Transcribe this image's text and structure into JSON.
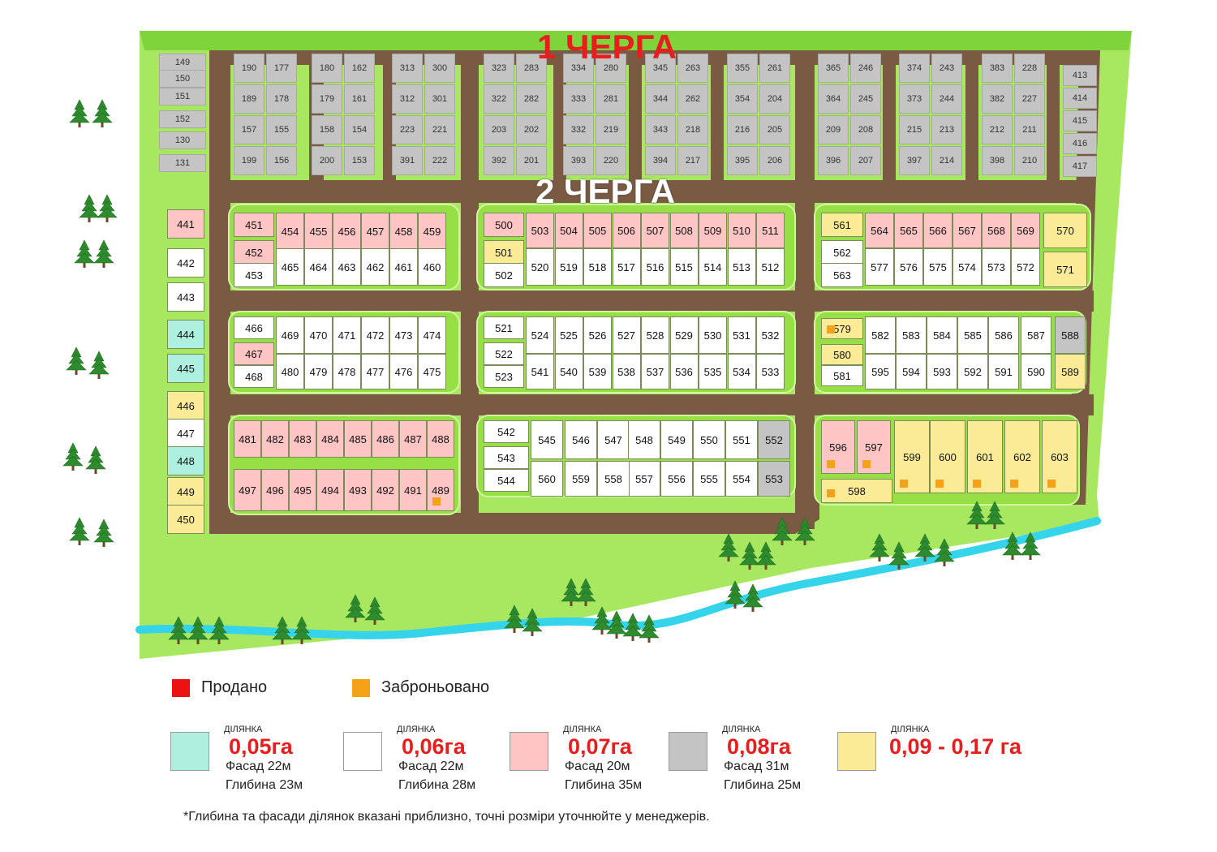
{
  "titles": {
    "queue1": "1 ЧЕРГА",
    "queue2": "2 ЧЕРГА"
  },
  "colors": {
    "size_005": "#aef0df",
    "size_006": "#ffffff",
    "size_007": "#ffc4c4",
    "size_008": "#c4c4c4",
    "size_009": "#fbeb97",
    "sold": "#ee1111",
    "reserved": "#f5a219",
    "grass": "#a8e861",
    "road": "#7a5a43",
    "water": "#36d4ea"
  },
  "legend": {
    "sold": "Продано",
    "reserved": "Заброньовано",
    "sizes": [
      {
        "label": "ДІЛЯНКА",
        "area": "0,05га",
        "facade": "Фасад 22м",
        "depth": "Глибина 23м",
        "color": "#aef0df"
      },
      {
        "label": "ДІЛЯНКА",
        "area": "0,06га",
        "facade": "Фасад 22м",
        "depth": "Глибина 28м",
        "color": "#ffffff"
      },
      {
        "label": "ДІЛЯНКА",
        "area": "0,07га",
        "facade": "Фасад 20м",
        "depth": "Глибина 35м",
        "color": "#ffc4c4"
      },
      {
        "label": "ДІЛЯНКА",
        "area": "0,08га",
        "facade": "Фасад 31м",
        "depth": "Глибина 25м",
        "color": "#c4c4c4"
      },
      {
        "label": "ДІЛЯНКА",
        "area": "0,09 - 0,17 га",
        "facade": "",
        "depth": "",
        "color": "#fbeb97"
      }
    ],
    "footnote": "*Глибина та фасади ділянок вказані приблизно, точні розміри уточнюйте у менеджерів."
  },
  "lots": {
    "queue1_grey": [
      "149",
      "150",
      "151",
      "152",
      "130",
      "131",
      "190",
      "177",
      "189",
      "178",
      "157",
      "155",
      "199",
      "156",
      "180",
      "162",
      "179",
      "161",
      "158",
      "154",
      "200",
      "153",
      "313",
      "300",
      "312",
      "301",
      "223",
      "221",
      "391",
      "222",
      "323",
      "283",
      "322",
      "282",
      "203",
      "202",
      "392",
      "201",
      "334",
      "280",
      "333",
      "281",
      "332",
      "219",
      "393",
      "220",
      "345",
      "263",
      "344",
      "262",
      "343",
      "218",
      "394",
      "217",
      "355",
      "261",
      "354",
      "204",
      "216",
      "205",
      "395",
      "206",
      "365",
      "246",
      "364",
      "245",
      "209",
      "208",
      "396",
      "207",
      "374",
      "243",
      "373",
      "244",
      "215",
      "213",
      "397",
      "214",
      "383",
      "228",
      "382",
      "227",
      "212",
      "211",
      "398",
      "210",
      "413",
      "414",
      "415",
      "416",
      "417"
    ],
    "white": [
      "442",
      "443",
      "447",
      "453",
      "465",
      "464",
      "463",
      "462",
      "461",
      "460",
      "502",
      "520",
      "519",
      "518",
      "517",
      "516",
      "515",
      "514",
      "513",
      "512",
      "562",
      "563",
      "577",
      "576",
      "575",
      "574",
      "573",
      "572",
      "466",
      "469",
      "470",
      "471",
      "472",
      "473",
      "474",
      "468",
      "480",
      "479",
      "478",
      "477",
      "476",
      "475",
      "521",
      "524",
      "525",
      "526",
      "527",
      "528",
      "529",
      "530",
      "531",
      "532",
      "522",
      "523",
      "541",
      "540",
      "539",
      "538",
      "537",
      "536",
      "535",
      "534",
      "533",
      "582",
      "583",
      "584",
      "585",
      "586",
      "587",
      "581",
      "595",
      "594",
      "593",
      "592",
      "591",
      "590",
      "542",
      "545",
      "546",
      "547",
      "548",
      "549",
      "550",
      "551",
      "543",
      "544",
      "560",
      "559",
      "558",
      "557",
      "556",
      "555",
      "554"
    ],
    "pink": [
      "441",
      "451",
      "454",
      "455",
      "456",
      "457",
      "458",
      "459",
      "452",
      "500",
      "503",
      "504",
      "505",
      "506",
      "507",
      "508",
      "509",
      "510",
      "511",
      "564",
      "565",
      "566",
      "567",
      "568",
      "569",
      "467",
      "481",
      "482",
      "483",
      "484",
      "485",
      "486",
      "487",
      "488",
      "497",
      "496",
      "495",
      "494",
      "493",
      "492",
      "491",
      "489",
      "596",
      "597"
    ],
    "teal": [
      "444",
      "445",
      "448"
    ],
    "yellow": [
      "446",
      "449",
      "450",
      "501",
      "561",
      "570",
      "571",
      "579",
      "580",
      "589",
      "598",
      "599",
      "600",
      "601",
      "602",
      "603"
    ],
    "grey08": [
      "588",
      "552",
      "553"
    ],
    "reserved": [
      "489",
      "579",
      "596",
      "597",
      "598",
      "599",
      "600",
      "601",
      "602",
      "603"
    ]
  }
}
